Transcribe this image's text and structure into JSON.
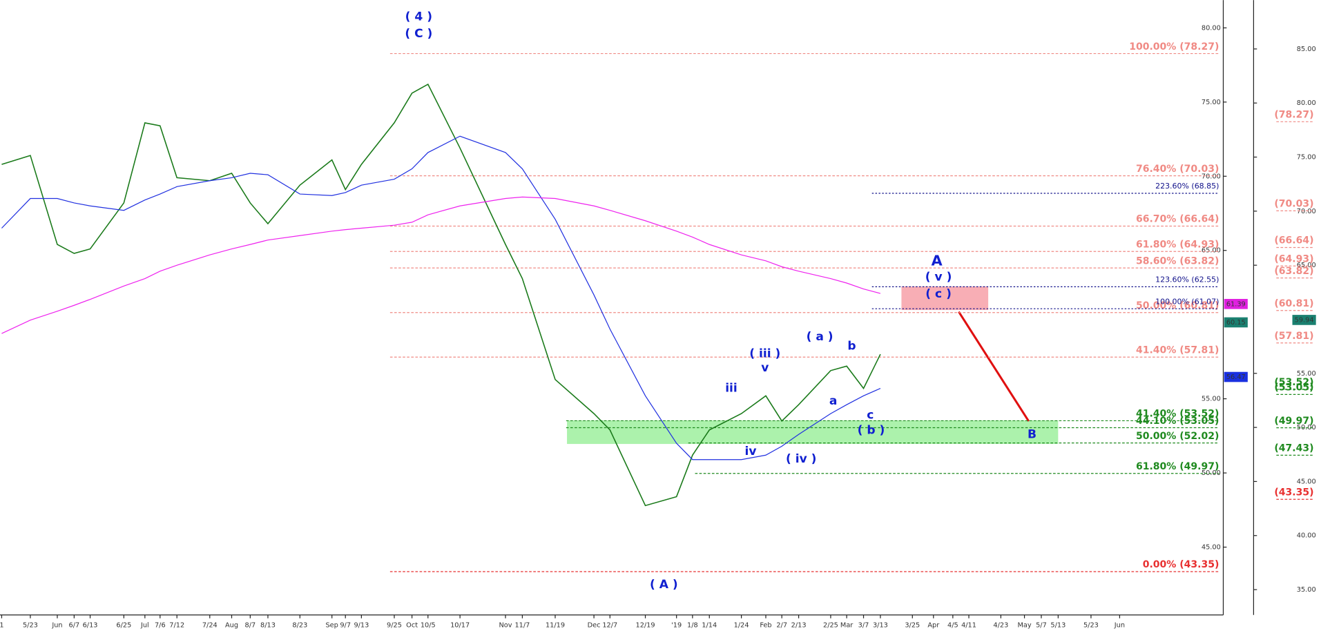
{
  "chart_data": {
    "type": "line",
    "categories": [
      "1",
      "5/23",
      "Jun",
      "6/7",
      "6/13",
      "6/25",
      "Jul",
      "7/6",
      "7/12",
      "7/24",
      "Aug",
      "8/7",
      "8/13",
      "8/23",
      "Sep",
      "9/7",
      "9/13",
      "9/25",
      "Oct",
      "10/5",
      "10/17",
      "Nov",
      "11/7",
      "11/19",
      "Dec",
      "12/7",
      "12/19",
      "'19",
      "1/8",
      "1/14",
      "1/24",
      "Feb",
      "2/7",
      "2/13",
      "2/25",
      "Mar",
      "3/7",
      "3/13",
      "3/25",
      "Apr",
      "4/5",
      "4/11",
      "4/23",
      "May",
      "5/7",
      "5/13",
      "5/23",
      "Jun"
    ],
    "series": [
      {
        "color": "#1a7a1a",
        "values": [
          70.8,
          71.4,
          65.4,
          64.8,
          65.1,
          68.2,
          73.6,
          73.4,
          69.9,
          69.7,
          70.2,
          68.2,
          66.8,
          69.4,
          71.1,
          69.1,
          70.8,
          73.6,
          75.6,
          76.2,
          71.9,
          65.4,
          63.1,
          56.3,
          54.0,
          52.9,
          47.8,
          48.4,
          51.2,
          52.9,
          54.0,
          55.2,
          53.5,
          54.6,
          56.9,
          57.2,
          55.7,
          58.0,
          null,
          null,
          null,
          null,
          null,
          null,
          null,
          null,
          null,
          null
        ]
      },
      {
        "color": "#2030e0",
        "values": [
          66.5,
          68.5,
          68.5,
          68.2,
          68.0,
          67.7,
          68.4,
          68.8,
          69.3,
          69.7,
          69.9,
          70.2,
          70.1,
          68.8,
          68.7,
          68.9,
          69.4,
          69.8,
          70.5,
          71.6,
          72.7,
          71.6,
          70.5,
          67.1,
          62.0,
          59.7,
          55.2,
          52.0,
          50.9,
          50.9,
          50.9,
          51.2,
          51.8,
          52.6,
          54.0,
          54.6,
          55.2,
          55.7,
          null,
          null,
          null,
          null,
          null,
          null,
          null,
          null,
          null,
          null
        ]
      },
      {
        "color": "#ee22ee",
        "values": [
          59.4,
          60.3,
          60.9,
          61.3,
          61.7,
          62.6,
          63.1,
          63.6,
          64.0,
          64.7,
          65.1,
          65.4,
          65.7,
          66.0,
          66.3,
          66.4,
          66.5,
          66.7,
          66.9,
          67.4,
          68.0,
          68.5,
          68.6,
          68.5,
          68.0,
          67.7,
          67.0,
          66.3,
          65.9,
          65.4,
          64.7,
          64.3,
          63.9,
          63.6,
          63.1,
          62.8,
          62.4,
          62.1,
          null,
          null,
          null,
          null,
          null,
          null,
          null,
          null,
          null,
          null
        ]
      }
    ],
    "ylim": [
      40.43,
      81.875
    ],
    "yticks": [
      {
        "value": 45,
        "label": "45.00"
      },
      {
        "value": 50,
        "label": "50.00"
      },
      {
        "value": 55,
        "label": "55.00"
      },
      {
        "value": 65,
        "label": "65.00"
      },
      {
        "value": 70,
        "label": "70.00"
      },
      {
        "value": 75,
        "label": "75.00"
      },
      {
        "value": 80,
        "label": "80.00"
      }
    ],
    "y2lim": [
      32.66,
      89.52
    ],
    "y2ticks": [
      {
        "value": 35,
        "label": "35.00"
      },
      {
        "value": 40,
        "label": "40.00"
      },
      {
        "value": 45,
        "label": "45.00"
      },
      {
        "value": 50,
        "label": "50.00"
      },
      {
        "value": 55,
        "label": "55.00"
      },
      {
        "value": 65,
        "label": "65.00"
      },
      {
        "value": 70,
        "label": "70.00"
      },
      {
        "value": 75,
        "label": "75.00"
      },
      {
        "value": 80,
        "label": "80.00"
      },
      {
        "value": 85,
        "label": "85.00"
      }
    ],
    "levels": [
      {
        "label": "100.00% (78.27)",
        "value": 78.27,
        "color": "#f08a84"
      },
      {
        "label": "76.40% (70.03)",
        "value": 70.03,
        "color": "#f08a84"
      },
      {
        "label": "66.70% (66.64)",
        "value": 66.64,
        "color": "#f08a84"
      },
      {
        "label": "61.80% (64.93)",
        "value": 64.93,
        "color": "#f08a84"
      },
      {
        "label": "58.60% (63.82)",
        "value": 63.82,
        "color": "#f08a84"
      },
      {
        "label": "50.00% (60.81)",
        "value": 60.81,
        "color": "#f08a84"
      },
      {
        "label": "41.40% (57.81)",
        "value": 57.81,
        "color": "#f08a84"
      },
      {
        "label": "0.00% (43.35)",
        "value": 43.35,
        "color": "#e83030"
      },
      {
        "label": "41.40% (53.52)",
        "value": 53.52,
        "color": "#1f8a1f"
      },
      {
        "label": "44.10% (53.05)",
        "value": 53.05,
        "color": "#1f8a1f"
      },
      {
        "label": "50.00% (52.02)",
        "value": 52.02,
        "color": "#1f8a1f"
      },
      {
        "label": "61.80% (49.97)",
        "value": 49.97,
        "color": "#1f8a1f"
      },
      {
        "label": "223.60% (68.85)",
        "value": 68.85,
        "color": "#10108a"
      },
      {
        "label": "123.60% (62.55)",
        "value": 62.55,
        "color": "#10108a"
      },
      {
        "label": "100.00% (61.07)",
        "value": 61.07,
        "color": "#10108a"
      }
    ],
    "y2_levels": [
      {
        "label": "(78.27)",
        "value": 78.27,
        "color": "#f08a84"
      },
      {
        "label": "(70.03)",
        "value": 70.03,
        "color": "#f08a84"
      },
      {
        "label": "(66.64)",
        "value": 66.64,
        "color": "#f08a84"
      },
      {
        "label": "(64.93)",
        "value": 64.93,
        "color": "#f08a84"
      },
      {
        "label": "(63.82)",
        "value": 63.82,
        "color": "#f08a84"
      },
      {
        "label": "(60.81)",
        "value": 60.81,
        "color": "#f08a84"
      },
      {
        "label": "(57.81)",
        "value": 57.81,
        "color": "#f08a84"
      },
      {
        "label": "(53.52)",
        "value": 53.52,
        "color": "#1f8a1f"
      },
      {
        "label": "(53.05)",
        "value": 53.05,
        "color": "#1f8a1f"
      },
      {
        "label": "(49.97)",
        "value": 49.97,
        "color": "#1f8a1f"
      },
      {
        "label": "(47.43)",
        "value": 47.43,
        "color": "#1f8a1f"
      },
      {
        "label": "(43.35)",
        "value": 43.35,
        "color": "#e83030"
      }
    ],
    "price_tags": [
      {
        "value": 61.39,
        "color": "#e020e0"
      },
      {
        "value": 60.15,
        "color": "#1a8070"
      },
      {
        "value": 56.47,
        "color": "#1a30e0"
      }
    ],
    "y2_price_tags": [
      {
        "value": 59.94,
        "color": "#1a8070"
      }
    ],
    "annotations": [
      "( 4 )",
      "( C )",
      "( A )",
      "iii",
      "( iii )",
      "v",
      "iv",
      "( iv )",
      "( a )",
      "b",
      "a",
      "c",
      "( b )",
      "A",
      "( v )",
      "( c )",
      "B"
    ]
  }
}
